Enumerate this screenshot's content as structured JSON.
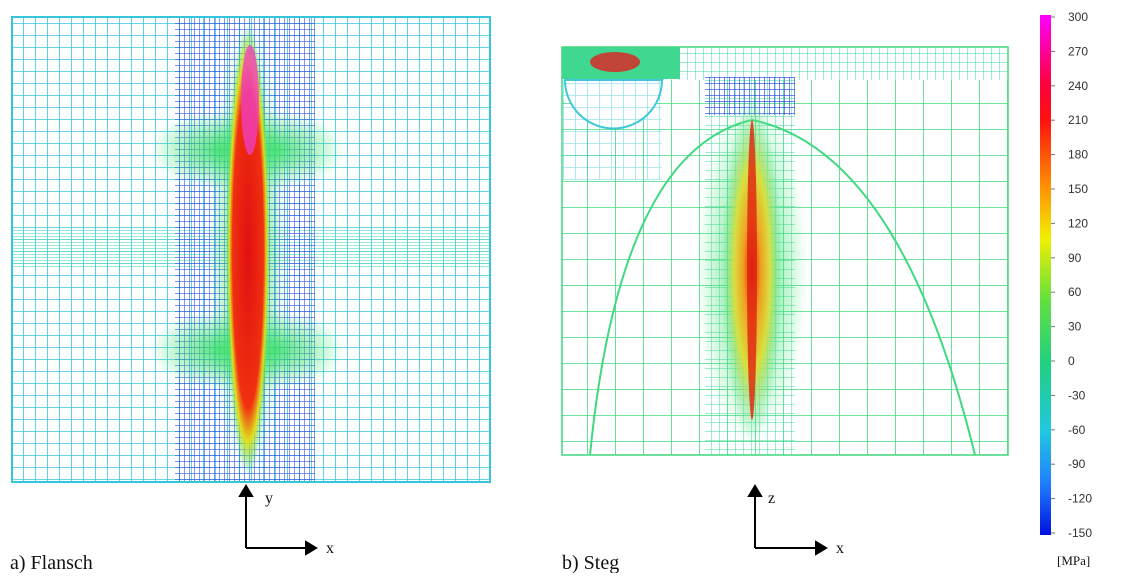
{
  "panels": [
    {
      "label": "a) Flansch",
      "axis_vertical": "y",
      "axis_horizontal": "x"
    },
    {
      "label": "b) Steg",
      "axis_vertical": "z",
      "axis_horizontal": "x"
    }
  ],
  "colorbar": {
    "ticks": [
      300,
      270,
      240,
      210,
      180,
      150,
      120,
      90,
      60,
      30,
      0,
      -30,
      -60,
      -90,
      -120,
      -150
    ],
    "range": [
      -150,
      300
    ],
    "unit": "[MPa]"
  }
}
